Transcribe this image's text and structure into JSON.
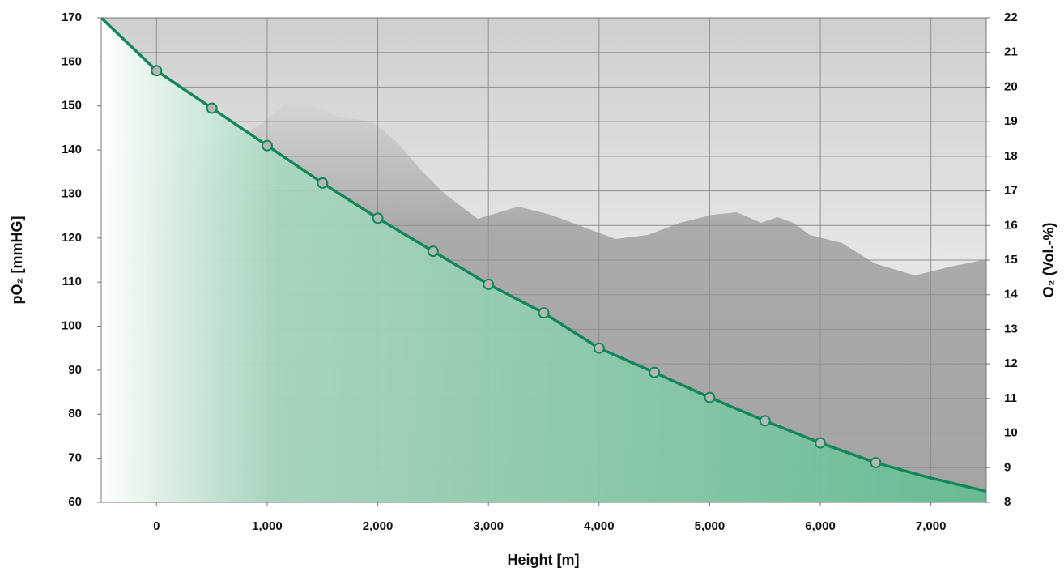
{
  "chart_data": {
    "type": "line",
    "xlabel": "Height [m]",
    "ylabel": "pO₂ [mmHG]",
    "y2label": "O₂ (Vol.-%)",
    "xlim": [
      -500,
      7500
    ],
    "xticks": [
      0,
      {
        "value": 1000,
        "label": "1,000"
      },
      {
        "value": 2000,
        "label": "2,000"
      },
      {
        "value": 3000,
        "label": "3,000"
      },
      {
        "value": 4000,
        "label": "4,000"
      },
      {
        "value": 5000,
        "label": "5,000"
      },
      {
        "value": 6000,
        "label": "6,000"
      },
      {
        "value": 7000,
        "label": "7,000"
      }
    ],
    "ylim": [
      60,
      170
    ],
    "yticks": [
      60,
      70,
      80,
      90,
      100,
      110,
      120,
      130,
      140,
      150,
      160,
      170
    ],
    "y2lim": [
      8,
      22
    ],
    "y2ticks": [
      8,
      9,
      10,
      11,
      12,
      13,
      14,
      15,
      16,
      17,
      18,
      19,
      20,
      21,
      22
    ],
    "grid": true,
    "series": [
      {
        "color": "#14875a",
        "fill": true,
        "x": [
          -500,
          0,
          500,
          1000,
          1500,
          2000,
          2500,
          3000,
          3500,
          4000,
          4500,
          5000,
          5500,
          6000,
          6500,
          7000,
          7500
        ],
        "values": [
          170,
          158,
          149.5,
          141,
          132.5,
          124.5,
          117,
          109.5,
          103,
          95,
          89.5,
          83.8,
          78.5,
          73.5,
          69,
          65.5,
          62.5
        ]
      },
      {
        "color": "#14875a",
        "marker": "circle",
        "marker_fill": "#b4b8b4",
        "x": [
          0,
          500,
          1000,
          1500,
          2000,
          2500,
          3000,
          3500,
          4000,
          4500,
          5000,
          5500,
          6000,
          6500
        ],
        "values": [
          158,
          149.5,
          141,
          132.5,
          124.5,
          117,
          109.5,
          103,
          95,
          89.5,
          83.8,
          78.5,
          73.5,
          69
        ]
      }
    ]
  }
}
